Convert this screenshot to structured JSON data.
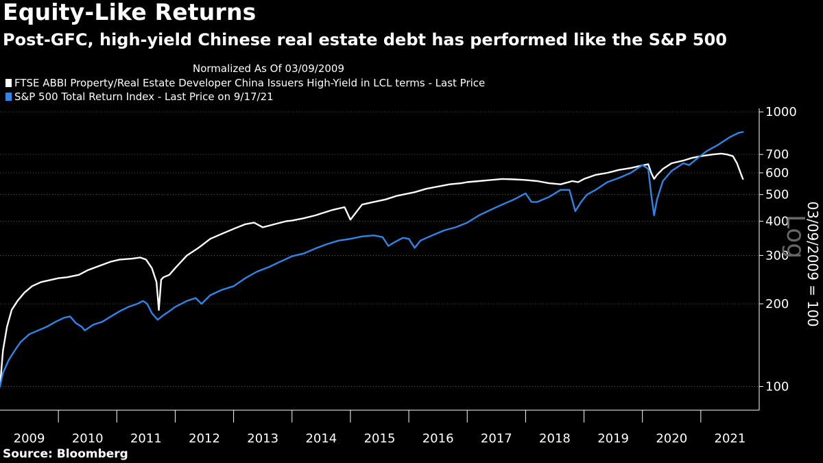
{
  "chart_data": {
    "type": "line",
    "title": "Equity-Like Returns",
    "subtitle": "Post-GFC, high-yield Chinese real estate debt has performed like the S&P 500",
    "note": "Normalized As Of 03/09/2009",
    "ylabel": "03/09/2009 = 100",
    "scale_label": "Log",
    "yscale": "log",
    "ylim": [
      82,
      1030
    ],
    "yticks": [
      100,
      200,
      300,
      400,
      500,
      600,
      700,
      1000
    ],
    "ytick_labels": [
      "100",
      "200",
      "300",
      "400",
      "500",
      "600",
      "700",
      "1000"
    ],
    "xlim": [
      2009.0,
      2022.0
    ],
    "x_categories": [
      "2009",
      "2010",
      "2011",
      "2012",
      "2013",
      "2014",
      "2015",
      "2016",
      "2017",
      "2018",
      "2019",
      "2020",
      "2021"
    ],
    "source": "Source: Bloomberg",
    "series": [
      {
        "name": "FTSE ABBI Property/Real Estate Developer China Issuers High-Yield in LCL terms - Last Price",
        "color": "#ffffff",
        "x": [
          2009.0,
          2009.05,
          2009.12,
          2009.2,
          2009.3,
          2009.42,
          2009.55,
          2009.7,
          2009.85,
          2010.0,
          2010.15,
          2010.35,
          2010.5,
          2010.7,
          2010.9,
          2011.05,
          2011.25,
          2011.4,
          2011.5,
          2011.6,
          2011.68,
          2011.72,
          2011.76,
          2011.8,
          2011.9,
          2012.0,
          2012.2,
          2012.4,
          2012.6,
          2012.8,
          2013.0,
          2013.2,
          2013.35,
          2013.5,
          2013.7,
          2013.9,
          2014.0,
          2014.2,
          2014.4,
          2014.55,
          2014.7,
          2014.9,
          2015.0,
          2015.2,
          2015.4,
          2015.6,
          2015.8,
          2016.0,
          2016.1,
          2016.3,
          2016.5,
          2016.7,
          2016.9,
          2017.0,
          2017.2,
          2017.4,
          2017.6,
          2017.8,
          2018.0,
          2018.2,
          2018.4,
          2018.6,
          2018.8,
          2018.9,
          2019.0,
          2019.2,
          2019.4,
          2019.6,
          2019.8,
          2019.95,
          2020.1,
          2020.15,
          2020.2,
          2020.25,
          2020.35,
          2020.5,
          2020.7,
          2020.85,
          2021.0,
          2021.2,
          2021.35,
          2021.45,
          2021.55,
          2021.62,
          2021.68,
          2021.72
        ],
        "values": [
          100,
          135,
          165,
          190,
          205,
          220,
          232,
          240,
          244,
          248,
          250,
          255,
          265,
          275,
          285,
          290,
          292,
          295,
          290,
          270,
          240,
          190,
          245,
          250,
          255,
          270,
          300,
          320,
          345,
          360,
          375,
          390,
          395,
          380,
          390,
          400,
          402,
          410,
          420,
          430,
          440,
          450,
          405,
          460,
          470,
          480,
          495,
          505,
          510,
          525,
          535,
          545,
          550,
          555,
          560,
          565,
          570,
          568,
          565,
          560,
          550,
          545,
          560,
          555,
          570,
          590,
          600,
          615,
          625,
          635,
          645,
          600,
          570,
          590,
          620,
          650,
          665,
          680,
          690,
          700,
          705,
          700,
          690,
          650,
          600,
          570
        ]
      },
      {
        "name": "S&P 500 Total Return Index - Last Price on 9/17/21",
        "color": "#2e86e6",
        "x": [
          2009.0,
          2009.05,
          2009.15,
          2009.25,
          2009.35,
          2009.5,
          2009.65,
          2009.8,
          2009.95,
          2010.1,
          2010.2,
          2010.3,
          2010.4,
          2010.45,
          2010.6,
          2010.75,
          2010.9,
          2011.05,
          2011.2,
          2011.35,
          2011.45,
          2011.52,
          2011.6,
          2011.7,
          2011.8,
          2011.9,
          2012.0,
          2012.2,
          2012.35,
          2012.45,
          2012.6,
          2012.8,
          2013.0,
          2013.2,
          2013.4,
          2013.6,
          2013.8,
          2014.0,
          2014.2,
          2014.4,
          2014.6,
          2014.8,
          2015.0,
          2015.2,
          2015.4,
          2015.55,
          2015.65,
          2015.75,
          2015.9,
          2016.0,
          2016.1,
          2016.2,
          2016.4,
          2016.6,
          2016.8,
          2017.0,
          2017.2,
          2017.4,
          2017.6,
          2017.8,
          2018.0,
          2018.1,
          2018.2,
          2018.4,
          2018.6,
          2018.75,
          2018.85,
          2018.95,
          2019.05,
          2019.2,
          2019.4,
          2019.6,
          2019.8,
          2020.0,
          2020.1,
          2020.15,
          2020.2,
          2020.25,
          2020.35,
          2020.5,
          2020.7,
          2020.8,
          2020.95,
          2021.1,
          2021.3,
          2021.5,
          2021.65,
          2021.72
        ],
        "values": [
          100,
          112,
          125,
          135,
          145,
          155,
          160,
          165,
          172,
          178,
          180,
          170,
          165,
          160,
          168,
          172,
          180,
          188,
          195,
          200,
          205,
          200,
          185,
          175,
          182,
          188,
          195,
          205,
          210,
          200,
          215,
          225,
          232,
          248,
          262,
          272,
          285,
          298,
          305,
          318,
          330,
          340,
          345,
          352,
          355,
          350,
          325,
          335,
          348,
          345,
          320,
          340,
          355,
          370,
          380,
          395,
          420,
          440,
          460,
          480,
          505,
          470,
          470,
          490,
          520,
          520,
          435,
          470,
          500,
          520,
          555,
          575,
          600,
          640,
          620,
          500,
          420,
          480,
          560,
          610,
          650,
          640,
          680,
          720,
          760,
          810,
          840,
          845
        ]
      }
    ]
  }
}
